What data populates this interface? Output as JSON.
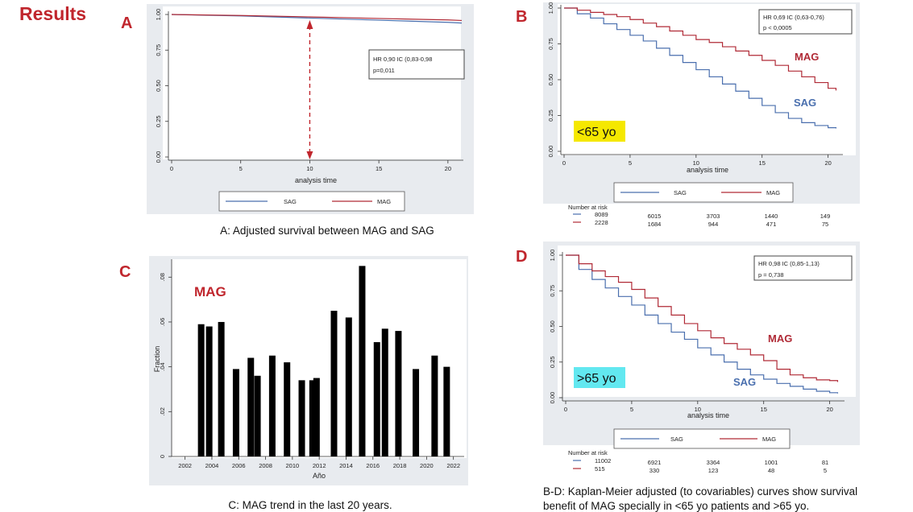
{
  "page": {
    "title": "Results",
    "colors": {
      "heading": "#c0262d",
      "sag": "#4a6fae",
      "mag": "#b02a36",
      "panel": "#e8ebef",
      "bar": "#000000",
      "highlight_yellow": "#f5e800",
      "highlight_cyan": "#62e8f0"
    }
  },
  "captions": {
    "a": "A: Adjusted survival between MAG and SAG",
    "c": "C: MAG trend in the last 20 years.",
    "bd_line1": "B-D: Kaplan-Meier adjusted (to covariables) curves show survival",
    "bd_line2": "benefit of MAG specially in <65 yo patients and >65 yo."
  },
  "chart_data": [
    {
      "id": "A",
      "type": "line",
      "panel_label": "A",
      "xlabel": "analysis time",
      "x_ticks": [
        "0",
        "5",
        "10",
        "15",
        "20"
      ],
      "y_ticks": [
        "0.00",
        "0.25",
        "0.50",
        "0.75",
        "1.00"
      ],
      "xlim": [
        0,
        21
      ],
      "ylim": [
        0,
        1
      ],
      "annotation": {
        "hr": "HR 0,90 IC (0,83-0,98",
        "p": "p=0,011"
      },
      "arrow_at_x": 10,
      "legend": [
        "SAG",
        "MAG"
      ],
      "series": [
        {
          "name": "SAG",
          "x": [
            0,
            5,
            10,
            15,
            20,
            21
          ],
          "y": [
            1.0,
            0.99,
            0.975,
            0.96,
            0.945,
            0.94
          ]
        },
        {
          "name": "MAG",
          "x": [
            0,
            5,
            10,
            15,
            20,
            21
          ],
          "y": [
            1.0,
            0.993,
            0.983,
            0.972,
            0.962,
            0.958
          ]
        }
      ]
    },
    {
      "id": "B",
      "type": "line",
      "panel_label": "B",
      "xlabel": "analysis time",
      "x_ticks": [
        "0",
        "5",
        "10",
        "15",
        "20"
      ],
      "y_ticks": [
        "0.00",
        "0.25",
        "0.50",
        "0.75",
        "1.00"
      ],
      "xlim": [
        0,
        21
      ],
      "ylim": [
        0,
        1
      ],
      "annotation": {
        "hr": "HR 0,69 IC (0,63-0,76)",
        "p": "p < 0,0005"
      },
      "age_label": "<65 yo",
      "series_labels": {
        "mag": "MAG",
        "sag": "SAG"
      },
      "legend": [
        "SAG",
        "MAG"
      ],
      "series": [
        {
          "name": "SAG",
          "x": [
            0,
            1,
            2,
            3,
            4,
            5,
            6,
            7,
            8,
            9,
            10,
            11,
            12,
            13,
            14,
            15,
            16,
            17,
            18,
            19,
            20,
            20.6
          ],
          "y": [
            1.0,
            0.96,
            0.93,
            0.89,
            0.85,
            0.81,
            0.77,
            0.72,
            0.67,
            0.62,
            0.57,
            0.52,
            0.47,
            0.42,
            0.37,
            0.32,
            0.27,
            0.23,
            0.2,
            0.18,
            0.165,
            0.16
          ]
        },
        {
          "name": "MAG",
          "x": [
            0,
            1,
            2,
            3,
            4,
            5,
            6,
            7,
            8,
            9,
            10,
            11,
            12,
            13,
            14,
            15,
            16,
            17,
            18,
            19,
            20,
            20.6
          ],
          "y": [
            1.0,
            0.985,
            0.97,
            0.955,
            0.94,
            0.92,
            0.895,
            0.87,
            0.84,
            0.81,
            0.78,
            0.76,
            0.73,
            0.7,
            0.67,
            0.635,
            0.6,
            0.56,
            0.52,
            0.48,
            0.44,
            0.425
          ]
        }
      ],
      "risk_table": {
        "title": "Number at risk",
        "rows": [
          {
            "name": "SAG",
            "values": [
              "8089",
              "6015",
              "3703",
              "1440",
              "149"
            ]
          },
          {
            "name": "MAG",
            "values": [
              "2228",
              "1684",
              "944",
              "471",
              "75"
            ]
          }
        ]
      }
    },
    {
      "id": "C",
      "type": "bar",
      "panel_label": "C",
      "ylabel": "Fraction",
      "xlabel": "Año",
      "inset_label": "MAG",
      "y_ticks": [
        "0",
        ".02",
        ".04",
        ".06",
        ".08"
      ],
      "ylim": [
        0,
        0.088
      ],
      "x_ticks": [
        "2002",
        "2004",
        "2006",
        "2008",
        "2010",
        "2012",
        "2014",
        "2016",
        "2018",
        "2020",
        "2022"
      ],
      "xlim": [
        2001,
        2022.8
      ],
      "x": [
        2003.2,
        2003.8,
        2004.7,
        2005.8,
        2006.9,
        2007.4,
        2008.5,
        2009.6,
        2010.7,
        2011.5,
        2011.8,
        2013.1,
        2014.2,
        2015.2,
        2016.3,
        2016.9,
        2017.9,
        2019.2,
        2020.6,
        2021.5
      ],
      "values": [
        0.059,
        0.058,
        0.06,
        0.039,
        0.044,
        0.036,
        0.045,
        0.042,
        0.034,
        0.034,
        0.035,
        0.065,
        0.062,
        0.085,
        0.051,
        0.057,
        0.056,
        0.039,
        0.045,
        0.04
      ]
    },
    {
      "id": "D",
      "type": "line",
      "panel_label": "D",
      "xlabel": "analysis time",
      "x_ticks": [
        "0",
        "5",
        "10",
        "15",
        "20"
      ],
      "y_ticks": [
        "0.00",
        "0.25",
        "0.50",
        "0.75",
        "1.00"
      ],
      "xlim": [
        0,
        21
      ],
      "ylim": [
        0,
        1
      ],
      "annotation": {
        "hr": "HR 0,98 IC (0,85-1,13)",
        "p": "p = 0,738"
      },
      "age_label": ">65 yo",
      "series_labels": {
        "mag": "MAG",
        "sag": "SAG"
      },
      "legend": [
        "SAG",
        "MAG"
      ],
      "series": [
        {
          "name": "SAG",
          "x": [
            0,
            1,
            2,
            3,
            4,
            5,
            6,
            7,
            8,
            9,
            10,
            11,
            12,
            13,
            14,
            15,
            16,
            17,
            18,
            19,
            20,
            20.6
          ],
          "y": [
            1.0,
            0.9,
            0.83,
            0.77,
            0.71,
            0.65,
            0.58,
            0.52,
            0.46,
            0.41,
            0.35,
            0.3,
            0.25,
            0.2,
            0.16,
            0.13,
            0.1,
            0.08,
            0.06,
            0.045,
            0.035,
            0.03
          ]
        },
        {
          "name": "MAG",
          "x": [
            0,
            1,
            2,
            3,
            4,
            5,
            6,
            7,
            8,
            9,
            10,
            11,
            12,
            13,
            14,
            15,
            16,
            17,
            18,
            19,
            20,
            20.6
          ],
          "y": [
            1.0,
            0.94,
            0.89,
            0.85,
            0.81,
            0.76,
            0.7,
            0.64,
            0.58,
            0.52,
            0.47,
            0.42,
            0.38,
            0.34,
            0.3,
            0.26,
            0.2,
            0.16,
            0.14,
            0.125,
            0.12,
            0.11
          ]
        }
      ],
      "risk_table": {
        "title": "Number at risk",
        "rows": [
          {
            "name": "SAG",
            "values": [
              "11002",
              "6921",
              "3364",
              "1001",
              "81"
            ]
          },
          {
            "name": "MAG",
            "values": [
              "515",
              "330",
              "123",
              "48",
              "5"
            ]
          }
        ]
      }
    }
  ]
}
